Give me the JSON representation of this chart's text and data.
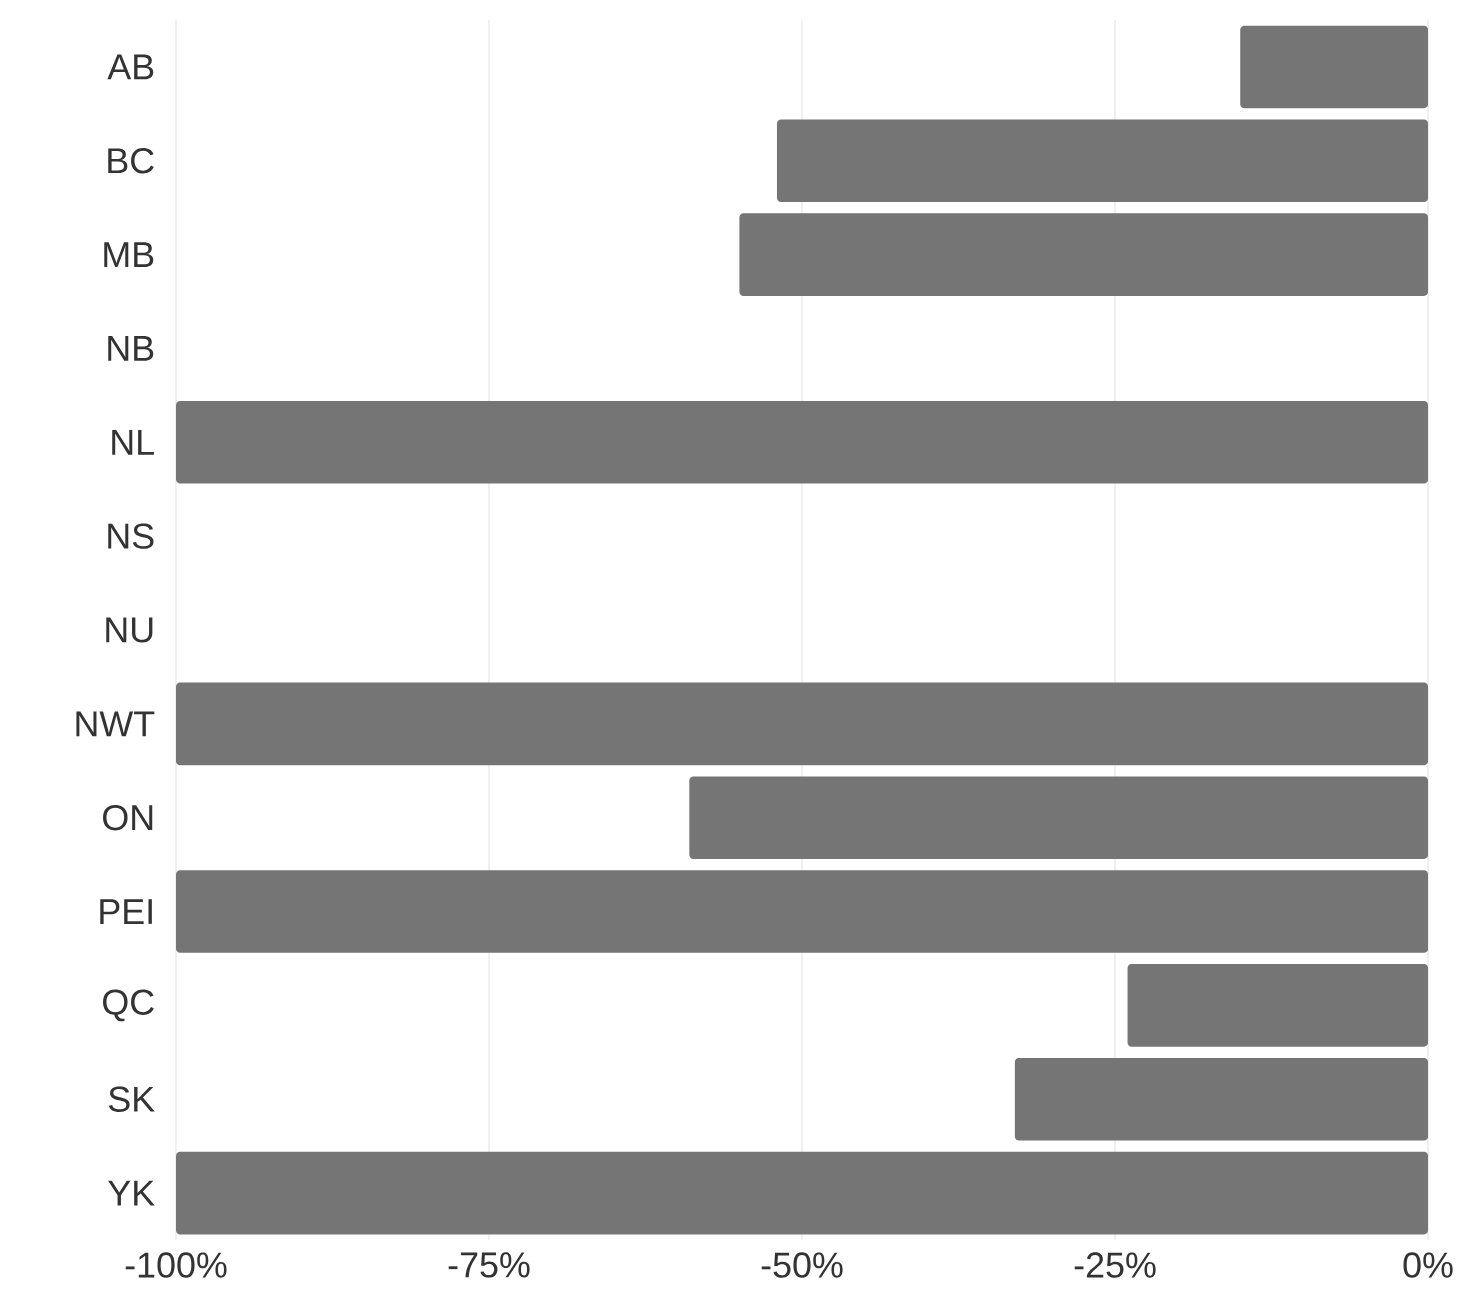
{
  "chart_data": {
    "type": "bar",
    "orientation": "horizontal",
    "categories": [
      "AB",
      "BC",
      "MB",
      "NB",
      "NL",
      "NS",
      "NU",
      "NWT",
      "ON",
      "PEI",
      "QC",
      "SK",
      "YK"
    ],
    "values": [
      -15,
      -52,
      -55,
      0,
      -100,
      0,
      0,
      -100,
      -59,
      -100,
      -24,
      -33,
      -100
    ],
    "color": "#757575",
    "xlim": [
      -100,
      0
    ],
    "xticks": [
      {
        "value": -100,
        "label": "-100%"
      },
      {
        "value": -75,
        "label": "-75%"
      },
      {
        "value": -50,
        "label": "-50%"
      },
      {
        "value": -25,
        "label": "-25%"
      },
      {
        "value": 0,
        "label": "0%"
      }
    ],
    "grid": "x"
  }
}
